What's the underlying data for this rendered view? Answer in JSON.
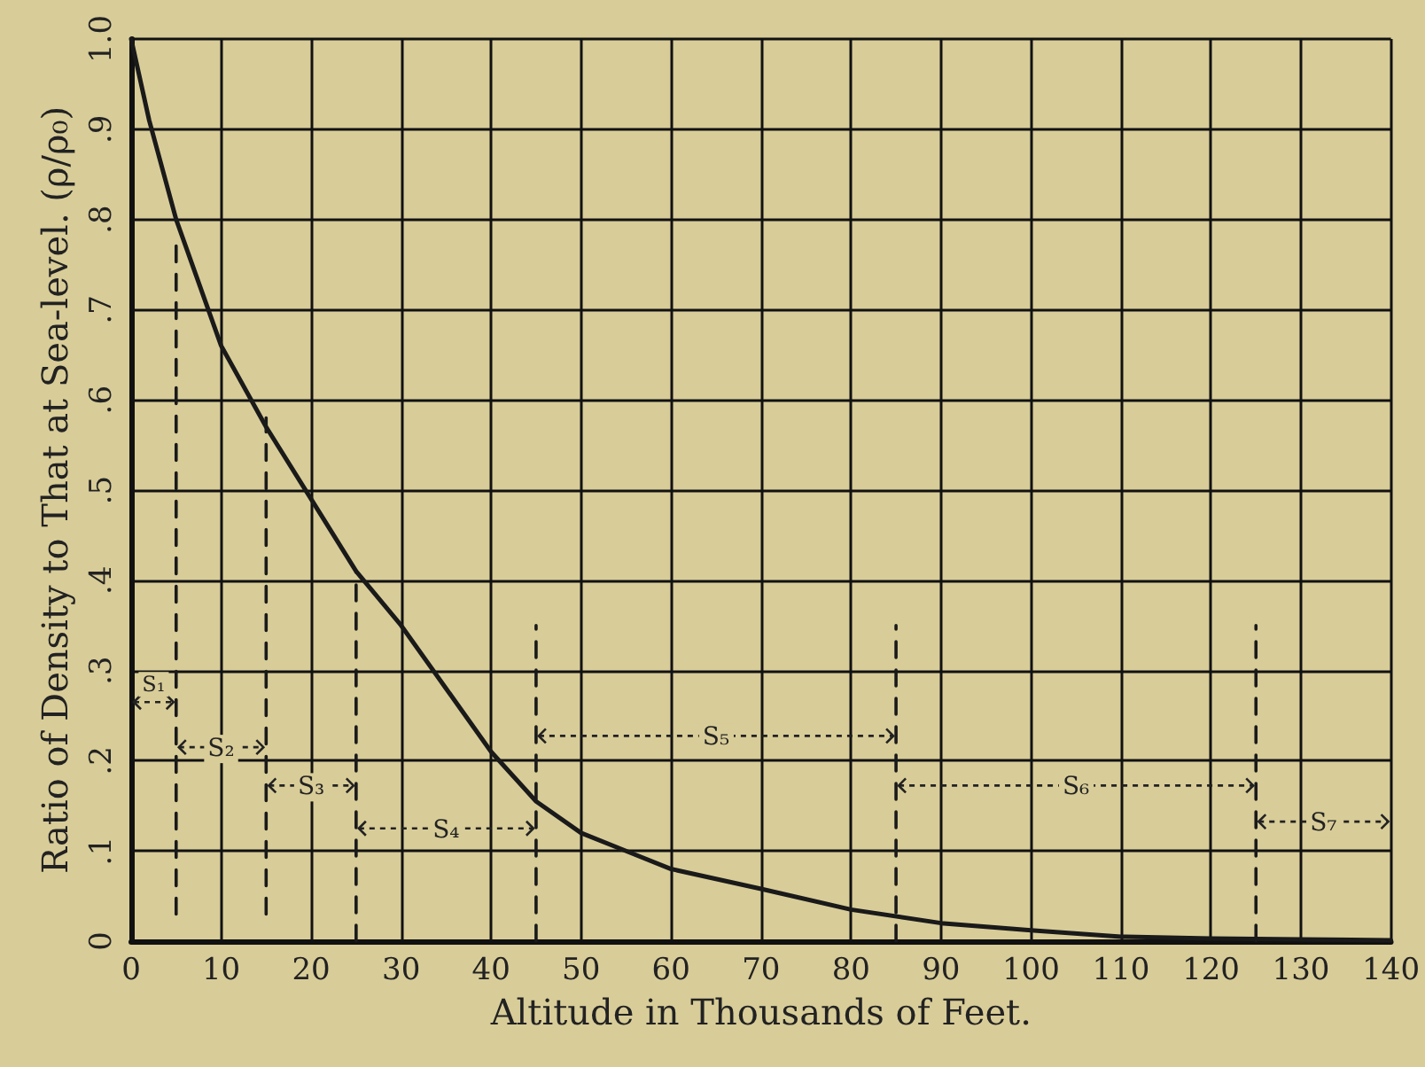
{
  "chart_data": {
    "type": "line",
    "xlabel": "Altitude in Thousands of Feet.",
    "ylabel": "Ratio of Density to That at Sea-level. (ρ/ρ₀)",
    "xlim": [
      0,
      140
    ],
    "ylim": [
      0,
      1.0
    ],
    "xticks": [
      0,
      10,
      20,
      30,
      40,
      50,
      60,
      70,
      80,
      90,
      100,
      110,
      120,
      130,
      140
    ],
    "yticks": [
      0,
      {
        "value": 0.1,
        "label": ".1"
      },
      {
        "value": 0.2,
        "label": ".2"
      },
      {
        "value": 0.3,
        "label": ".3"
      },
      {
        "value": 0.4,
        "label": ".4"
      },
      {
        "value": 0.5,
        "label": ".5"
      },
      {
        "value": 0.6,
        "label": ".6"
      },
      {
        "value": 0.7,
        "label": ".7"
      },
      {
        "value": 0.8,
        "label": ".8"
      },
      {
        "value": 0.9,
        "label": ".9"
      },
      {
        "value": 1.0,
        "label": "1.0"
      }
    ],
    "grid": true,
    "marker": "none",
    "series": [
      {
        "color": "#1a1a1a",
        "line_style": "solid",
        "x": [
          0,
          2,
          5,
          10,
          15,
          20,
          25,
          30,
          35,
          40,
          45,
          50,
          55,
          60,
          70,
          80,
          90,
          100,
          110,
          120,
          130,
          140
        ],
        "values": [
          1.0,
          0.91,
          0.8,
          0.66,
          0.57,
          0.49,
          0.41,
          0.35,
          0.28,
          0.21,
          0.155,
          0.12,
          0.1,
          0.08,
          0.058,
          0.035,
          0.02,
          0.012,
          0.005,
          0.003,
          0.002,
          0.001
        ]
      },
      {
        "color": "#1a1a1a",
        "line_style": "dashed",
        "x": [
          5,
          5
        ],
        "values": [
          0.03,
          0.78
        ]
      },
      {
        "color": "#1a1a1a",
        "line_style": "dashed",
        "x": [
          15,
          15
        ],
        "values": [
          0.03,
          0.58
        ]
      },
      {
        "color": "#1a1a1a",
        "line_style": "dashed",
        "x": [
          25,
          25
        ],
        "values": [
          0,
          0.41
        ]
      },
      {
        "color": "#1a1a1a",
        "line_style": "dashed",
        "x": [
          45,
          45
        ],
        "values": [
          0,
          0.35
        ]
      },
      {
        "color": "#1a1a1a",
        "line_style": "dashed",
        "x": [
          85,
          85
        ],
        "values": [
          0,
          0.35
        ]
      },
      {
        "color": "#1a1a1a",
        "line_style": "dashed",
        "x": [
          125,
          125
        ],
        "values": [
          0,
          0.35
        ]
      }
    ],
    "annotations": [
      "S₁",
      "S₂",
      "S₃",
      "S₄",
      "S₅",
      "S₆",
      "S₇"
    ]
  }
}
